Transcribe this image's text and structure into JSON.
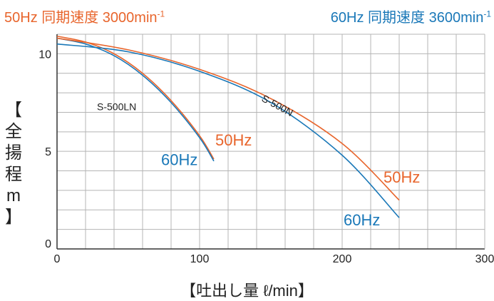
{
  "header": {
    "left": {
      "prefix": "50Hz 同期速度 3000min",
      "sup": "-1"
    },
    "right": {
      "prefix": "60Hz 同期速度 3600min",
      "sup": "-1"
    }
  },
  "colors": {
    "hz50": "#e8652c",
    "hz60": "#1a78b8",
    "grid": "#b4b4b4",
    "axis": "#333333",
    "text": "#222222"
  },
  "chart_data": {
    "type": "line",
    "xlabel": "【吐出し量 ℓ/min】",
    "ylabel_chars": [
      "【",
      "全",
      "揚",
      "程",
      "m",
      "】"
    ],
    "xlim": [
      0,
      300
    ],
    "ylim": [
      0,
      11
    ],
    "x_ticks": [
      0,
      100,
      200,
      300
    ],
    "y_ticks": [
      0,
      5,
      10
    ],
    "grid": true,
    "series": [
      {
        "group": "S-500LN",
        "name": "50Hz",
        "color": "#e8652c",
        "points": [
          [
            0,
            10.9
          ],
          [
            20,
            10.6
          ],
          [
            40,
            10.0
          ],
          [
            60,
            9.0
          ],
          [
            80,
            7.6
          ],
          [
            100,
            5.8
          ],
          [
            110,
            4.6
          ]
        ]
      },
      {
        "group": "S-500LN",
        "name": "60Hz",
        "color": "#1a78b8",
        "points": [
          [
            0,
            10.8
          ],
          [
            20,
            10.5
          ],
          [
            40,
            9.9
          ],
          [
            60,
            8.9
          ],
          [
            80,
            7.5
          ],
          [
            100,
            5.7
          ],
          [
            110,
            4.5
          ]
        ]
      },
      {
        "group": "S-500N",
        "name": "50Hz",
        "color": "#e8652c",
        "points": [
          [
            0,
            10.8
          ],
          [
            50,
            10.2
          ],
          [
            100,
            9.2
          ],
          [
            150,
            7.7
          ],
          [
            200,
            5.4
          ],
          [
            240,
            2.5
          ]
        ]
      },
      {
        "group": "S-500N",
        "name": "60Hz",
        "color": "#1a78b8",
        "points": [
          [
            0,
            10.5
          ],
          [
            50,
            10.1
          ],
          [
            100,
            9.1
          ],
          [
            150,
            7.5
          ],
          [
            200,
            4.8
          ],
          [
            240,
            1.6
          ]
        ]
      }
    ],
    "annotations": [
      {
        "text": "S-500LN",
        "x": 28,
        "y": 7.1,
        "color": "#222222",
        "rotate": 0,
        "size": 14
      },
      {
        "text": "S-500N",
        "x": 143,
        "y": 7.6,
        "color": "#222222",
        "rotate": 28,
        "size": 14
      },
      {
        "text": "50Hz",
        "x": 111,
        "y": 5.3,
        "color": "#e8652c",
        "rotate": 0,
        "size": 22
      },
      {
        "text": "60Hz",
        "x": 73,
        "y": 4.3,
        "color": "#1a78b8",
        "rotate": 0,
        "size": 22
      },
      {
        "text": "50Hz",
        "x": 229,
        "y": 3.4,
        "color": "#e8652c",
        "rotate": 0,
        "size": 22
      },
      {
        "text": "60Hz",
        "x": 201,
        "y": 1.2,
        "color": "#1a78b8",
        "rotate": 0,
        "size": 22
      }
    ]
  }
}
